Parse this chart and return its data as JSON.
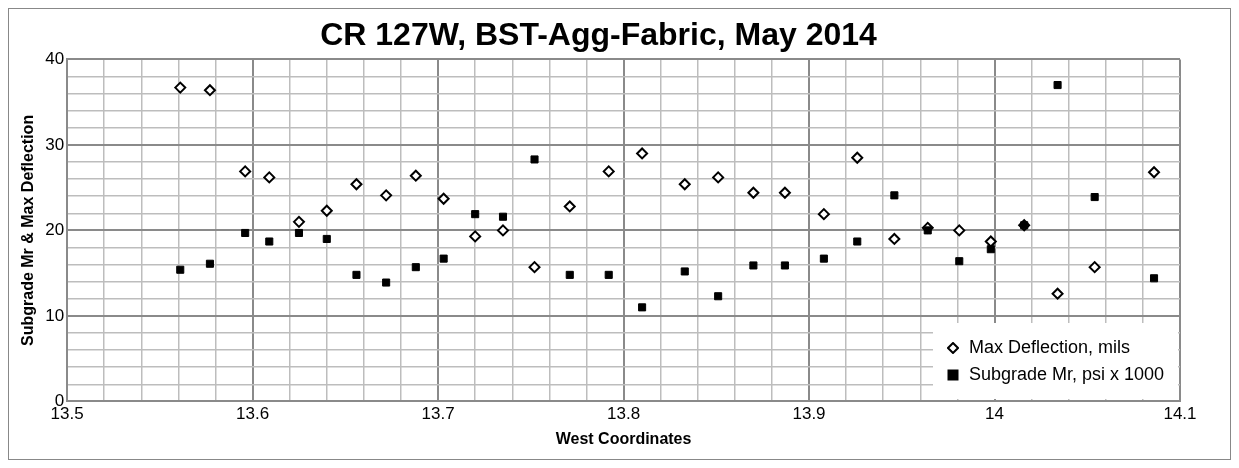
{
  "chart_data": {
    "type": "scatter",
    "title": "CR 127W, BST-Agg-Fabric, May 2014",
    "xlabel": "West Coordinates",
    "ylabel": "Subgrade Mr & Max Deflection",
    "x": [
      13.561,
      13.577,
      13.596,
      13.609,
      13.625,
      13.64,
      13.656,
      13.672,
      13.688,
      13.703,
      13.72,
      13.735,
      13.752,
      13.771,
      13.792,
      13.81,
      13.833,
      13.851,
      13.87,
      13.887,
      13.908,
      13.926,
      13.946,
      13.964,
      13.981,
      13.998,
      14.016,
      14.034,
      14.054,
      14.086
    ],
    "series": [
      {
        "name": "Max Deflection, mils",
        "color": "#000000",
        "marker": "diamond",
        "values": [
          36.7,
          36.4,
          26.9,
          26.2,
          21.0,
          22.3,
          25.4,
          24.1,
          26.4,
          23.7,
          19.3,
          20.0,
          15.7,
          22.8,
          26.9,
          29.0,
          25.4,
          26.2,
          24.4,
          24.4,
          21.9,
          28.5,
          19.0,
          20.3,
          20.0,
          18.7,
          20.6,
          12.6,
          15.7,
          26.8
        ]
      },
      {
        "name": "Subgrade Mr, psi x 1000",
        "color": "#000000",
        "marker": "square",
        "values": [
          15.4,
          16.1,
          19.7,
          18.7,
          19.7,
          19.0,
          14.8,
          13.9,
          15.7,
          16.7,
          21.9,
          21.6,
          28.3,
          14.8,
          14.8,
          11.0,
          15.2,
          12.3,
          15.9,
          15.9,
          16.7,
          18.7,
          24.1,
          20.0,
          16.4,
          17.8,
          20.6,
          37.0,
          23.9,
          14.4
        ]
      }
    ],
    "xlim": [
      13.5,
      14.1
    ],
    "xticks": [
      13.5,
      {
        "value": 13.52,
        "label": null
      },
      {
        "value": 13.54,
        "label": null
      },
      {
        "value": 13.56,
        "label": null
      },
      {
        "value": 13.58,
        "label": null
      },
      13.6,
      {
        "value": 13.62,
        "label": null
      },
      {
        "value": 13.64,
        "label": null
      },
      {
        "value": 13.66,
        "label": null
      },
      {
        "value": 13.68,
        "label": null
      },
      13.7,
      {
        "value": 13.72,
        "label": null
      },
      {
        "value": 13.74,
        "label": null
      },
      {
        "value": 13.76,
        "label": null
      },
      {
        "value": 13.78,
        "label": null
      },
      13.8,
      {
        "value": 13.82,
        "label": null
      },
      {
        "value": 13.84,
        "label": null
      },
      {
        "value": 13.86,
        "label": null
      },
      {
        "value": 13.88,
        "label": null
      },
      13.9,
      {
        "value": 13.92,
        "label": null
      },
      {
        "value": 13.94,
        "label": null
      },
      {
        "value": 13.96,
        "label": null
      },
      {
        "value": 13.98,
        "label": null
      },
      14,
      {
        "value": 14.02,
        "label": null
      },
      {
        "value": 14.04,
        "label": null
      },
      {
        "value": 14.06,
        "label": null
      },
      {
        "value": 14.08,
        "label": null
      },
      14.1
    ],
    "ylim": [
      0,
      40
    ],
    "yticks": [
      0,
      {
        "value": 2,
        "label": null
      },
      {
        "value": 4,
        "label": null
      },
      {
        "value": 6,
        "label": null
      },
      {
        "value": 8,
        "label": null
      },
      10,
      {
        "value": 12,
        "label": null
      },
      {
        "value": 14,
        "label": null
      },
      {
        "value": 16,
        "label": null
      },
      {
        "value": 18,
        "label": null
      },
      20,
      {
        "value": 22,
        "label": null
      },
      {
        "value": 24,
        "label": null
      },
      {
        "value": 26,
        "label": null
      },
      {
        "value": 28,
        "label": null
      },
      30,
      {
        "value": 32,
        "label": null
      },
      {
        "value": 34,
        "label": null
      },
      {
        "value": 36,
        "label": null
      },
      {
        "value": 38,
        "label": null
      },
      40
    ],
    "grid": true,
    "legend": "bottom right"
  }
}
